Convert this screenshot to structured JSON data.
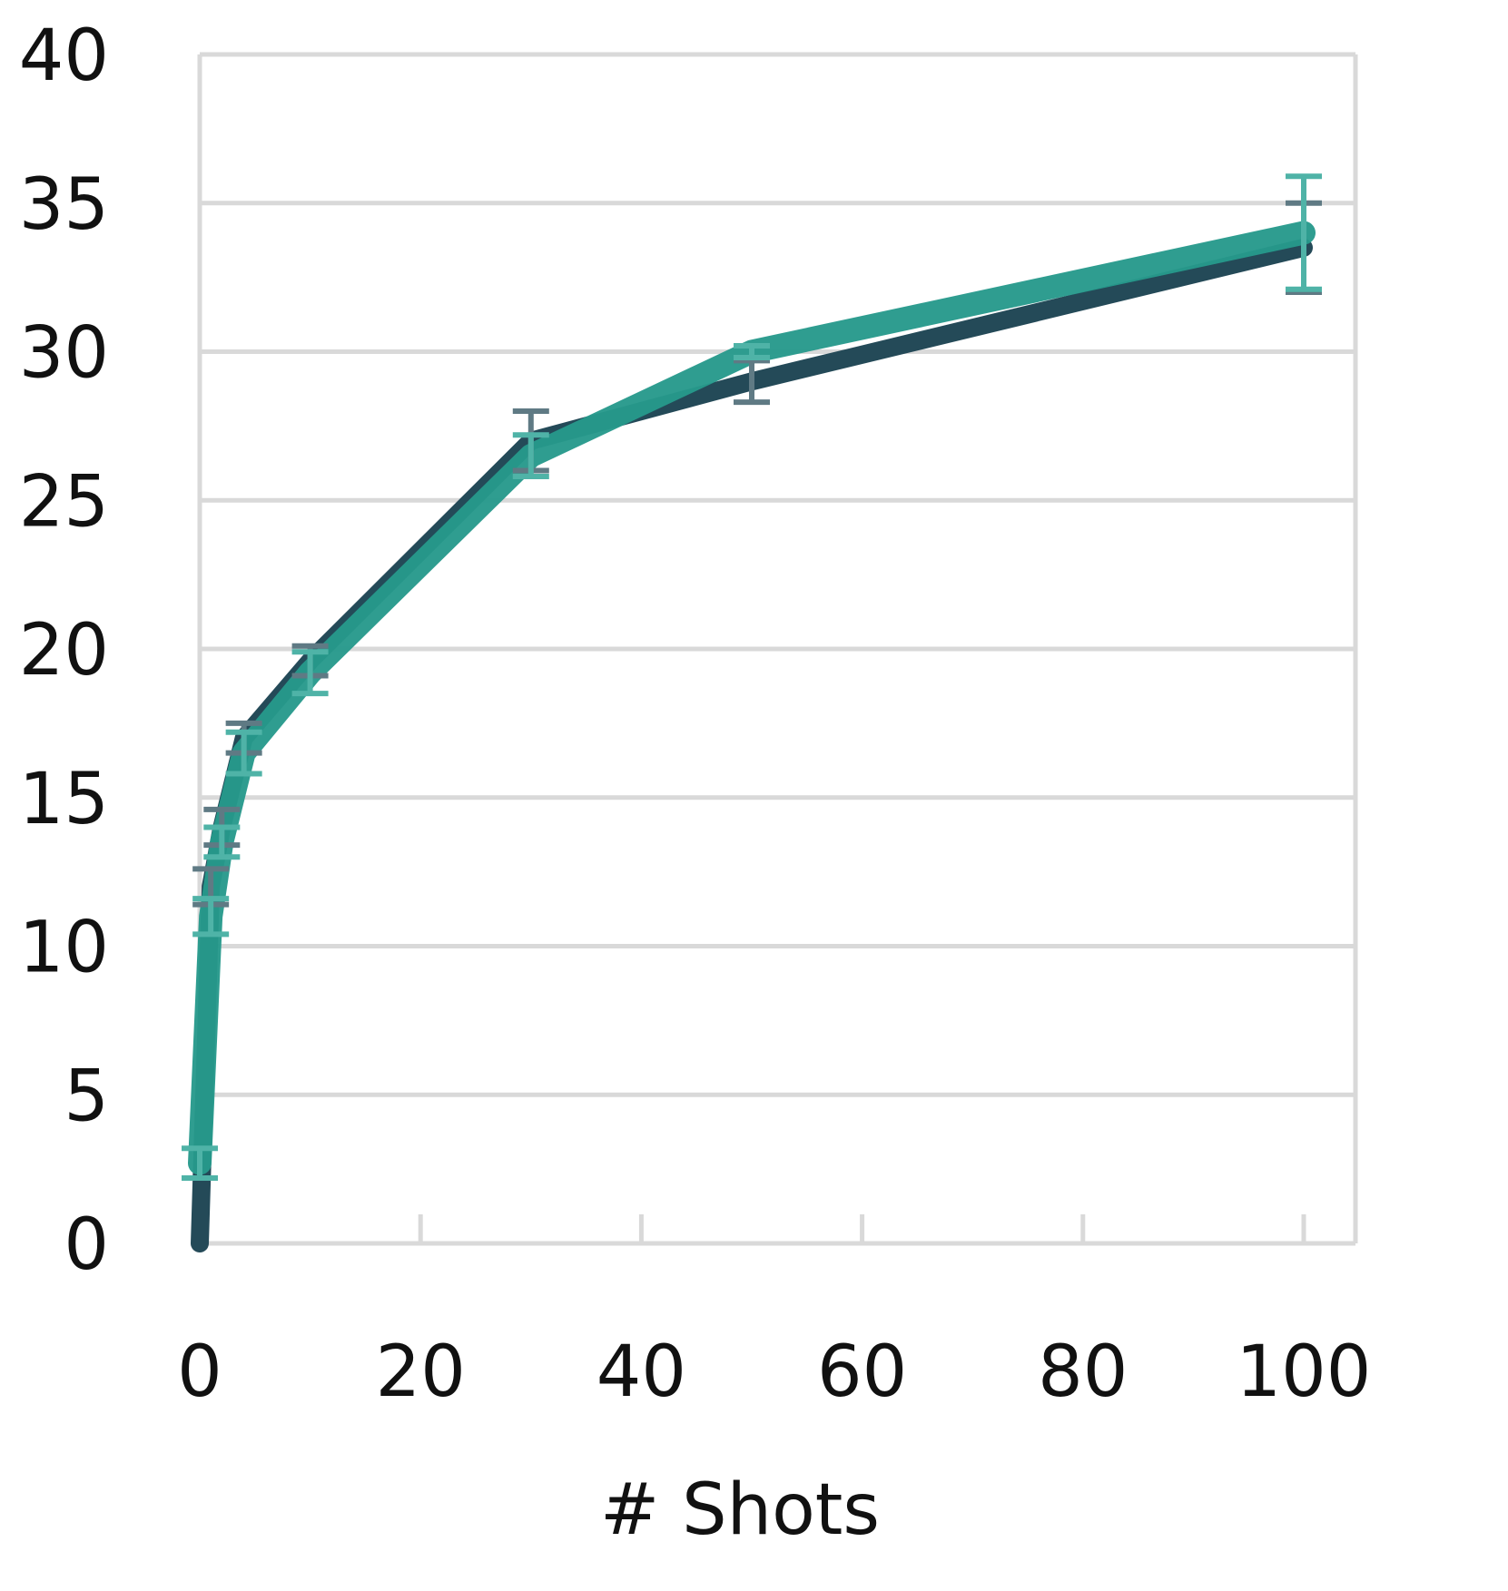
{
  "chart_data": {
    "type": "line",
    "title": "",
    "xlabel": "# Shots",
    "ylabel": "",
    "xlim": [
      0,
      100
    ],
    "ylim": [
      0,
      40
    ],
    "x_ticks": [
      0,
      20,
      40,
      60,
      80,
      100
    ],
    "y_ticks": [
      0,
      5,
      10,
      15,
      20,
      25,
      30,
      35,
      40
    ],
    "x_tick_labels": [
      "0",
      "20",
      "40",
      "60",
      "80",
      "100"
    ],
    "y_tick_labels": [
      "0",
      "5",
      "10",
      "15",
      "20",
      "25",
      "30",
      "35",
      "40"
    ],
    "grid": "horizontal",
    "legend": "none",
    "series": [
      {
        "color": "#244a58",
        "error_color": "#5f7a84",
        "points": [
          {
            "x": 0,
            "y": 0.0,
            "err": 0.0
          },
          {
            "x": 1,
            "y": 12.0,
            "err": 0.6
          },
          {
            "x": 2,
            "y": 14.0,
            "err": 0.6
          },
          {
            "x": 4,
            "y": 17.0,
            "err": 0.5
          },
          {
            "x": 10,
            "y": 19.6,
            "err": 0.5
          },
          {
            "x": 30,
            "y": 27.0,
            "err": 1.0
          },
          {
            "x": 50,
            "y": 29.0,
            "err": 0.7
          },
          {
            "x": 100,
            "y": 33.5,
            "err": 1.5
          }
        ]
      },
      {
        "color": "#26998b",
        "error_color": "#4fb3a7",
        "points": [
          {
            "x": 0,
            "y": 2.7,
            "err": 0.5
          },
          {
            "x": 1,
            "y": 11.0,
            "err": 0.6
          },
          {
            "x": 2,
            "y": 13.5,
            "err": 0.5
          },
          {
            "x": 4,
            "y": 16.5,
            "err": 0.7
          },
          {
            "x": 10,
            "y": 19.2,
            "err": 0.7
          },
          {
            "x": 30,
            "y": 26.5,
            "err": 0.7
          },
          {
            "x": 50,
            "y": 30.0,
            "err": 0.2
          },
          {
            "x": 100,
            "y": 34.0,
            "err": 1.9
          }
        ]
      }
    ]
  }
}
